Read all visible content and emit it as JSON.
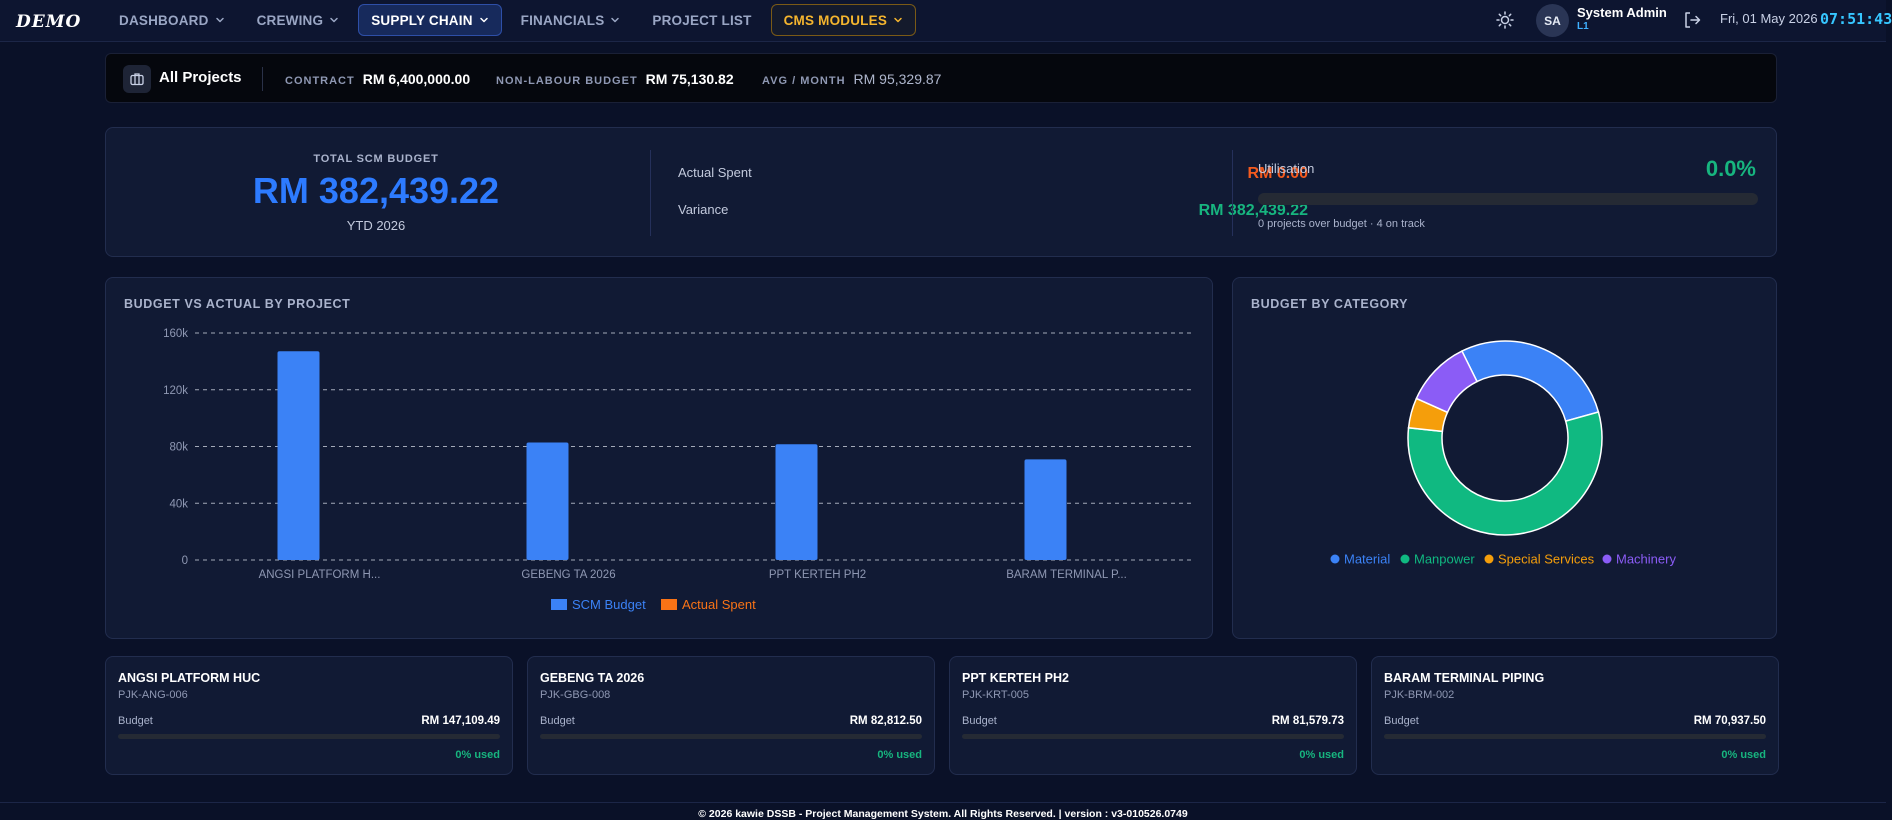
{
  "nav": {
    "logo": "DEMO",
    "items": [
      {
        "label": "DASHBOARD",
        "dropdown": true
      },
      {
        "label": "CREWING",
        "dropdown": true
      },
      {
        "label": "SUPPLY CHAIN",
        "dropdown": true,
        "active": true
      },
      {
        "label": "FINANCIALS",
        "dropdown": true
      },
      {
        "label": "PROJECT LIST",
        "dropdown": false
      },
      {
        "label": "CMS MODULES",
        "dropdown": true
      }
    ],
    "user": {
      "initials": "SA",
      "name": "System Admin",
      "role": "L1"
    },
    "date": "Fri, 01 May 2026",
    "time": "07:51:43"
  },
  "project_bar": {
    "title": "All Projects",
    "contract_label": "CONTRACT",
    "contract_value": "RM 6,400,000.00",
    "nonlabour_label": "NON-LABOUR BUDGET",
    "nonlabour_value": "RM 75,130.82",
    "avg_label": "AVG / MONTH",
    "avg_value": "RM 95,329.87"
  },
  "summary": {
    "total_label": "TOTAL SCM BUDGET",
    "total_value": "RM 382,439.22",
    "ytd": "YTD 2026",
    "actual_label": "Actual Spent",
    "actual_value": "RM 0.00",
    "variance_label": "Variance",
    "variance_value": "RM 382,439.22",
    "util_label": "Utilisation",
    "util_value": "0.0%",
    "util_fraction": 0,
    "util_note": "0 projects over budget · 4 on track"
  },
  "bar_card": {
    "title": "BUDGET VS ACTUAL BY PROJECT"
  },
  "donut_card": {
    "title": "BUDGET BY CATEGORY"
  },
  "colors": {
    "budget": "#3b82f6",
    "actual": "#f97316",
    "material": "#3b82f6",
    "manpower": "#10b981",
    "special": "#f59e0b",
    "machinery": "#8b5cf6"
  },
  "chart_data": [
    {
      "type": "bar",
      "title": "BUDGET VS ACTUAL BY PROJECT",
      "categories": [
        "ANGSI PLATFORM H...",
        "GEBENG TA 2026",
        "PPT KERTEH PH2",
        "BARAM TERMINAL P..."
      ],
      "series": [
        {
          "name": "SCM Budget",
          "values": [
            147109.49,
            82812.5,
            81579.73,
            70937.5
          ]
        },
        {
          "name": "Actual Spent",
          "values": [
            0,
            0,
            0,
            0
          ]
        }
      ],
      "yticks": [
        "0",
        "40k",
        "80k",
        "120k",
        "160k"
      ],
      "ylim": [
        0,
        160000
      ],
      "grid": true,
      "legend": "bottom-center"
    },
    {
      "type": "pie",
      "title": "BUDGET BY CATEGORY",
      "labels": [
        "Material",
        "Manpower",
        "Special Services",
        "Machinery"
      ],
      "values": [
        28,
        56,
        5,
        11
      ],
      "legend": "bottom-center"
    }
  ],
  "projects": [
    {
      "name": "ANGSI PLATFORM HUC",
      "code": "PJK-ANG-006",
      "budget_label": "Budget",
      "budget": "RM 147,109.49",
      "used": "0% used",
      "used_fraction": 0
    },
    {
      "name": "GEBENG TA 2026",
      "code": "PJK-GBG-008",
      "budget_label": "Budget",
      "budget": "RM 82,812.50",
      "used": "0% used",
      "used_fraction": 0
    },
    {
      "name": "PPT KERTEH PH2",
      "code": "PJK-KRT-005",
      "budget_label": "Budget",
      "budget": "RM 81,579.73",
      "used": "0% used",
      "used_fraction": 0
    },
    {
      "name": "BARAM TERMINAL PIPING",
      "code": "PJK-BRM-002",
      "budget_label": "Budget",
      "budget": "RM 70,937.50",
      "used": "0% used",
      "used_fraction": 0
    }
  ],
  "footer": "© 2026 kawie DSSB - Project Management System. All Rights Reserved.     | version : v3-010526.0749"
}
